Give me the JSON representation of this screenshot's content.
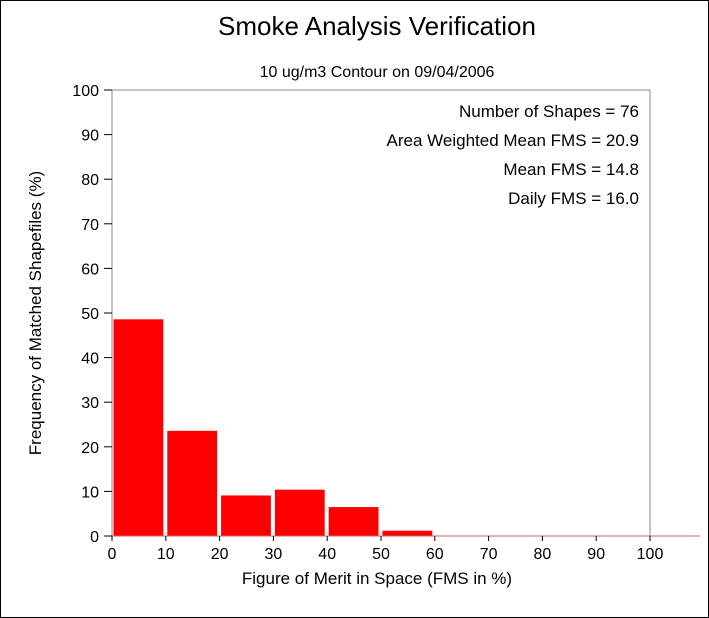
{
  "chart_data": {
    "type": "bar",
    "title": "Smoke Analysis Verification",
    "subtitle": "10 ug/m3 Contour on 09/04/2006",
    "xlabel": "Figure of Merit in Space (FMS in %)",
    "ylabel": "Frequency of Matched Shapefiles (%)",
    "xlim": [
      0,
      110
    ],
    "ylim": [
      0,
      100
    ],
    "x_ticks": [
      0,
      10,
      20,
      30,
      40,
      50,
      60,
      70,
      80,
      90,
      100
    ],
    "y_ticks": [
      0,
      10,
      20,
      30,
      40,
      50,
      60,
      70,
      80,
      90,
      100
    ],
    "bins": [
      {
        "start": 0,
        "end": 10,
        "value": 48.7
      },
      {
        "start": 10,
        "end": 20,
        "value": 23.7
      },
      {
        "start": 20,
        "end": 30,
        "value": 9.2
      },
      {
        "start": 30,
        "end": 40,
        "value": 10.5
      },
      {
        "start": 40,
        "end": 50,
        "value": 6.6
      },
      {
        "start": 50,
        "end": 60,
        "value": 1.3
      },
      {
        "start": 60,
        "end": 70,
        "value": 0
      },
      {
        "start": 70,
        "end": 80,
        "value": 0
      },
      {
        "start": 80,
        "end": 90,
        "value": 0
      },
      {
        "start": 90,
        "end": 100,
        "value": 0
      },
      {
        "start": 100,
        "end": 110,
        "value": 0
      }
    ],
    "bar_color": "#ff0000",
    "grid": false,
    "stats": [
      "Number of Shapes = 76",
      "Area Weighted Mean FMS = 20.9",
      "Mean FMS = 14.8",
      "Daily FMS = 16.0"
    ]
  }
}
